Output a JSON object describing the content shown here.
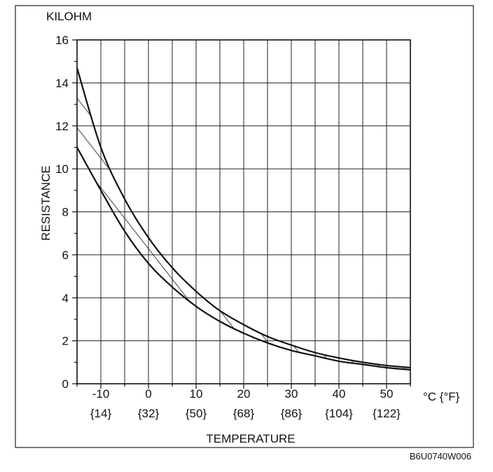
{
  "chart_data": {
    "type": "area",
    "unit_label": "KILOHM",
    "ylabel": "RESISTANCE",
    "xlabel": "TEMPERATURE",
    "x_unit": "°C {°F}",
    "figure_code": "B6U0740W006",
    "xlim": [
      -15,
      55
    ],
    "ylim": [
      0,
      16
    ],
    "y_ticks": [
      0,
      2,
      4,
      6,
      8,
      10,
      12,
      14,
      16
    ],
    "x_ticks_c": [
      "-10",
      "0",
      "10",
      "20",
      "30",
      "40",
      "50"
    ],
    "x_ticks_f": [
      "{14}",
      "{32}",
      "{50}",
      "{68}",
      "{86}",
      "{104}",
      "{122}"
    ],
    "grid": true,
    "series": [
      {
        "x": [
          -15,
          -10,
          -5,
          0,
          5,
          10,
          15,
          20,
          25,
          30,
          35,
          40,
          45,
          50,
          55
        ],
        "y": [
          14.7,
          11.0,
          8.6,
          6.8,
          5.4,
          4.3,
          3.4,
          2.75,
          2.2,
          1.8,
          1.45,
          1.2,
          1.0,
          0.85,
          0.75
        ]
      },
      {
        "x": [
          -15,
          -10,
          -5,
          0,
          5,
          10,
          15,
          20,
          25,
          30,
          35,
          40,
          45,
          50,
          55
        ],
        "y": [
          11.0,
          9.0,
          7.1,
          5.6,
          4.5,
          3.6,
          2.9,
          2.35,
          1.9,
          1.55,
          1.3,
          1.05,
          0.9,
          0.75,
          0.65
        ]
      }
    ]
  }
}
